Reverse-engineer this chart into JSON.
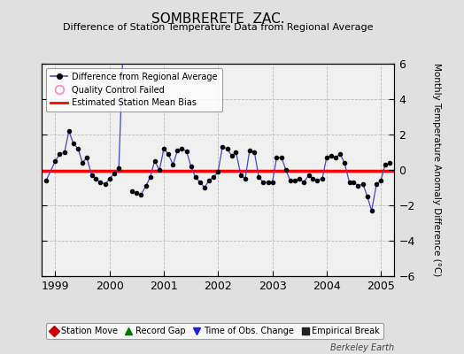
{
  "title": "SOMBRERETE  ZAC.",
  "subtitle": "Difference of Station Temperature Data from Regional Average",
  "ylabel": "Monthly Temperature Anomaly Difference (°C)",
  "background_color": "#e0e0e0",
  "plot_bg_color": "#f0f0f0",
  "bias_value": -0.05,
  "ylim": [
    -6,
    6
  ],
  "xlim": [
    1998.75,
    2005.25
  ],
  "x_ticks": [
    1999,
    2000,
    2001,
    2002,
    2003,
    2004,
    2005
  ],
  "y_ticks": [
    -6,
    -4,
    -2,
    0,
    2,
    4,
    6
  ],
  "grid_color": "#bbbbbb",
  "line_color": "#4444cc",
  "marker_color": "#000000",
  "bias_color": "#ff0000",
  "data_x_seg1": [
    1998.83,
    1999.0,
    1999.08,
    1999.17,
    1999.25,
    1999.33,
    1999.42,
    1999.5,
    1999.58,
    1999.67,
    1999.75,
    1999.83,
    1999.92,
    2000.0,
    2000.08,
    2000.17,
    2000.25
  ],
  "data_y_seg1": [
    -0.6,
    0.5,
    0.9,
    1.0,
    2.2,
    1.5,
    1.2,
    0.4,
    0.7,
    -0.3,
    -0.5,
    -0.7,
    -0.8,
    -0.5,
    -0.2,
    0.1,
    7.0
  ],
  "data_x_seg2": [
    2000.42,
    2000.5,
    2000.58,
    2000.67,
    2000.75,
    2000.83,
    2000.92,
    2001.0,
    2001.08,
    2001.17,
    2001.25,
    2001.33,
    2001.42,
    2001.5,
    2001.58,
    2001.67,
    2001.75,
    2001.83,
    2001.92,
    2002.0,
    2002.08,
    2002.17,
    2002.25,
    2002.33,
    2002.42,
    2002.5,
    2002.58,
    2002.67,
    2002.75,
    2002.83,
    2002.92,
    2003.0,
    2003.08,
    2003.17,
    2003.25,
    2003.33,
    2003.42,
    2003.5,
    2003.58,
    2003.67,
    2003.75,
    2003.83,
    2003.92,
    2004.0,
    2004.08,
    2004.17,
    2004.25,
    2004.33,
    2004.42,
    2004.5,
    2004.58,
    2004.67,
    2004.75,
    2004.83,
    2004.92,
    2005.0,
    2005.08,
    2005.17
  ],
  "data_y_seg2": [
    -1.2,
    -1.3,
    -1.4,
    -0.9,
    -0.4,
    0.5,
    0.0,
    1.2,
    0.9,
    0.3,
    1.1,
    1.2,
    1.05,
    0.2,
    -0.4,
    -0.7,
    -1.0,
    -0.6,
    -0.4,
    -0.1,
    1.3,
    1.2,
    0.8,
    1.0,
    -0.3,
    -0.5,
    1.1,
    1.0,
    -0.4,
    -0.7,
    -0.7,
    -0.7,
    0.7,
    0.7,
    0.0,
    -0.6,
    -0.6,
    -0.5,
    -0.7,
    -0.3,
    -0.5,
    -0.6,
    -0.5,
    0.7,
    0.8,
    0.7,
    0.9,
    0.4,
    -0.7,
    -0.7,
    -0.9,
    -0.8,
    -1.5,
    -2.3,
    -0.8,
    -0.6,
    0.3,
    0.4
  ],
  "legend1_label": "Difference from Regional Average",
  "legend2_label": "Quality Control Failed",
  "legend3_label": "Estimated Station Mean Bias",
  "bottom_legend": [
    {
      "marker": "D",
      "color": "#cc0000",
      "label": "Station Move"
    },
    {
      "marker": "^",
      "color": "#007700",
      "label": "Record Gap"
    },
    {
      "marker": "v",
      "color": "#2222cc",
      "label": "Time of Obs. Change"
    },
    {
      "marker": "s",
      "color": "#222222",
      "label": "Empirical Break"
    }
  ],
  "footer": "Berkeley Earth"
}
